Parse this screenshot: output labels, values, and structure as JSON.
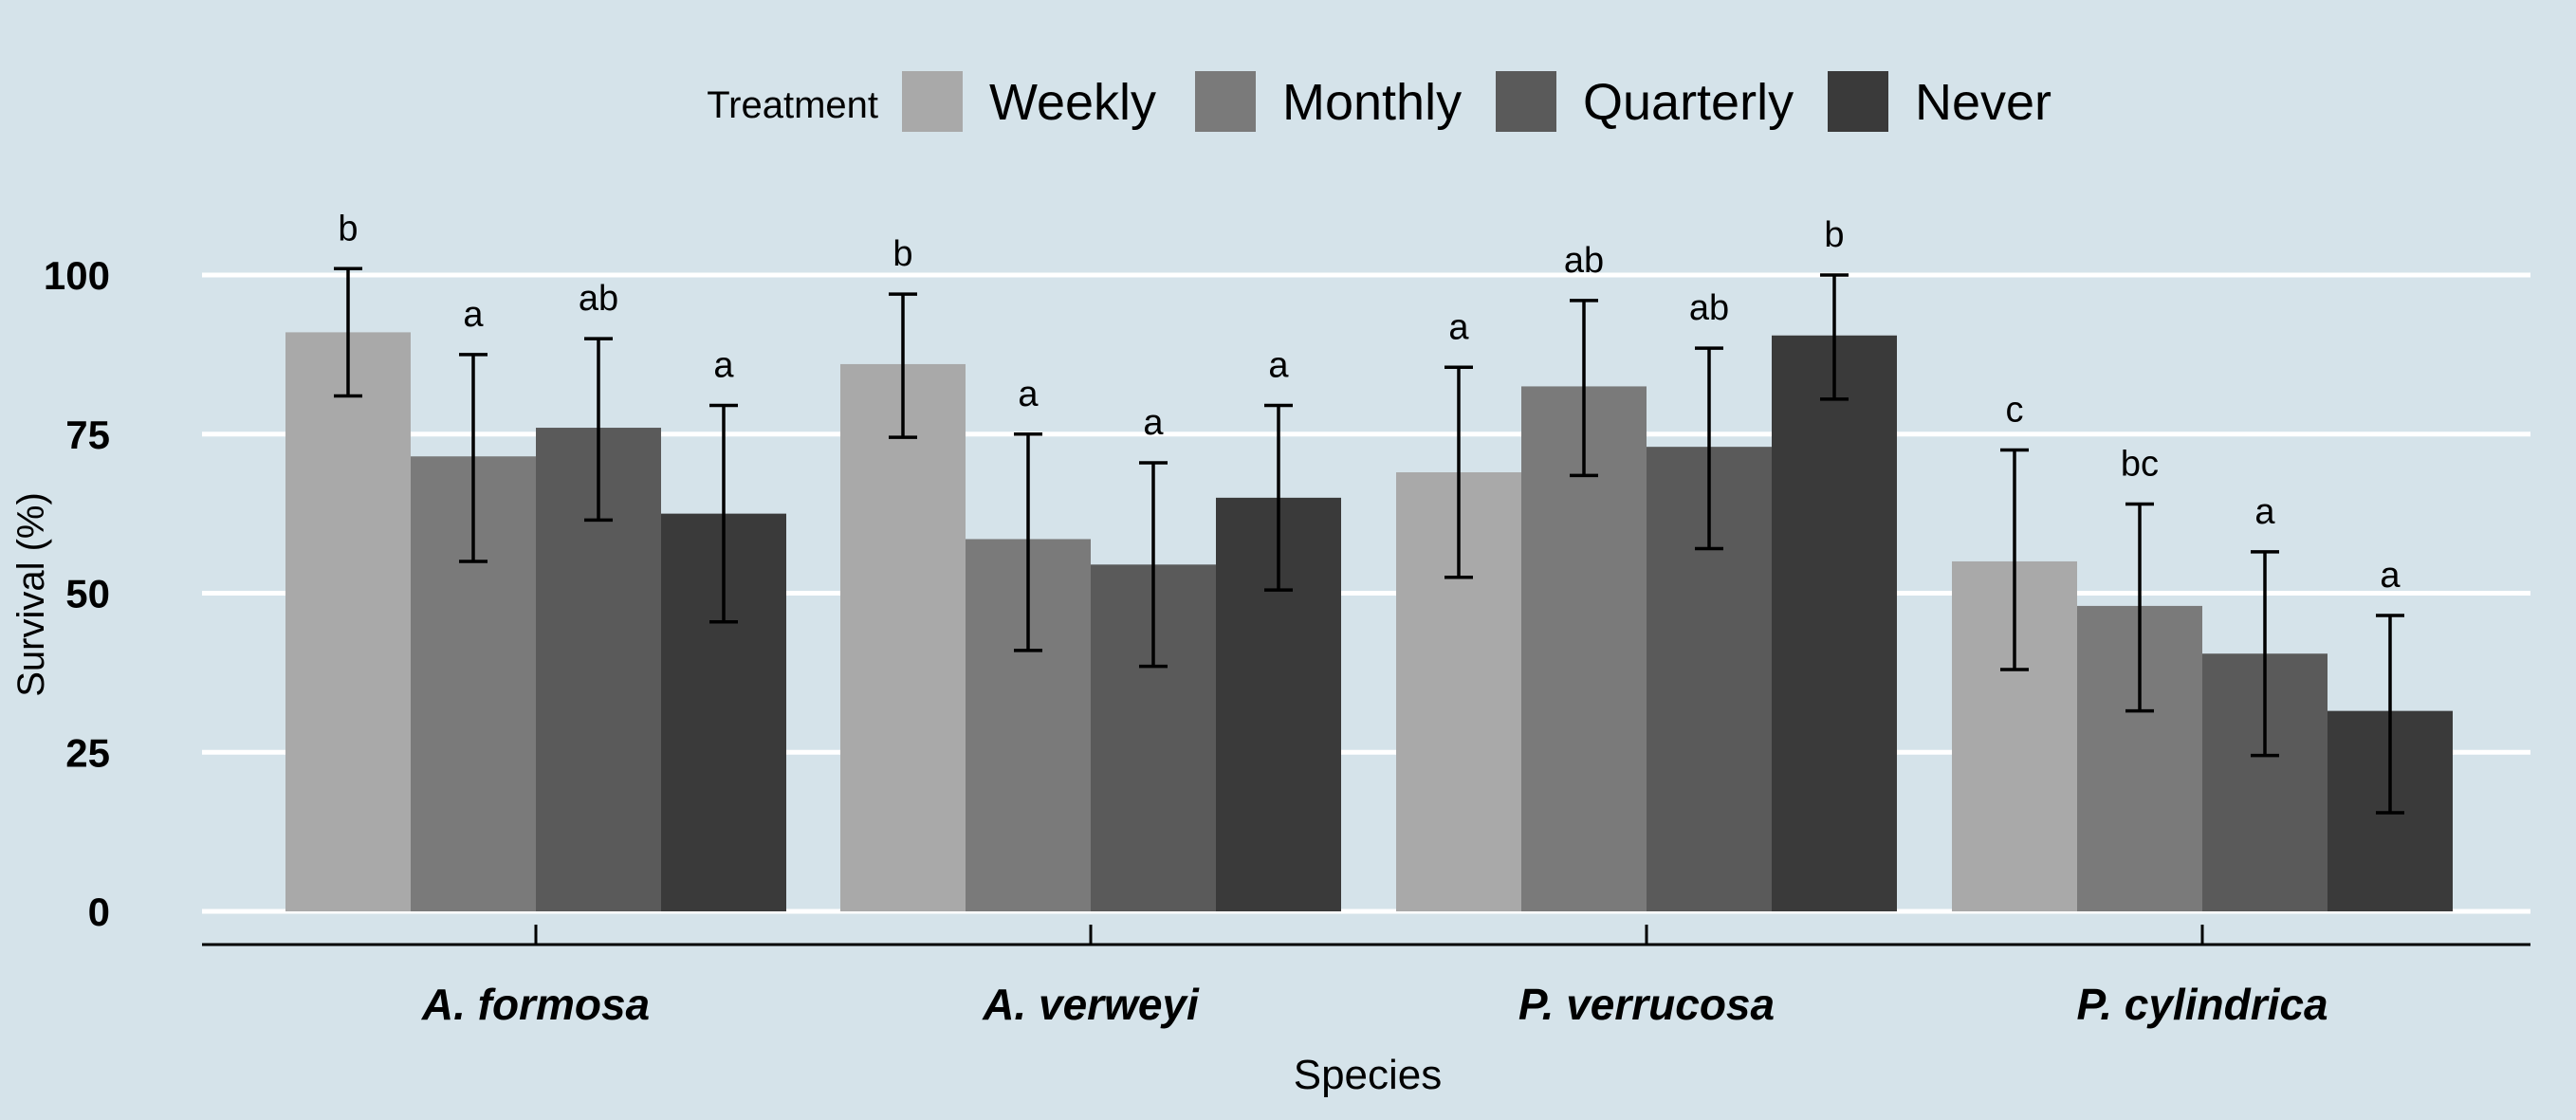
{
  "chart_data": {
    "type": "bar",
    "title": "",
    "xlabel": "Species",
    "ylabel": "Survival (%)",
    "ylim": [
      0,
      110
    ],
    "yticks": [
      0,
      25,
      50,
      75,
      100
    ],
    "grid": "horizontal",
    "legend": {
      "title": "Treatment",
      "placement": "top-center"
    },
    "categories": [
      "A. formosa",
      "A. verweyi",
      "P. verrucosa",
      "P. cylindrica"
    ],
    "series": [
      {
        "name": "Weekly",
        "color": "#a9a9a9",
        "values": [
          91,
          86,
          69,
          55
        ],
        "error_low": [
          81,
          74.5,
          52.5,
          38
        ],
        "error_high": [
          101,
          97,
          85.5,
          72.5
        ],
        "letters": [
          "b",
          "b",
          "a",
          "c"
        ]
      },
      {
        "name": "Monthly",
        "color": "#7a7a7a",
        "values": [
          71.5,
          58.5,
          82.5,
          48
        ],
        "error_low": [
          55,
          41,
          68.5,
          31.5
        ],
        "error_high": [
          87.5,
          75,
          96,
          64
        ],
        "letters": [
          "a",
          "a",
          "ab",
          "bc"
        ]
      },
      {
        "name": "Quarterly",
        "color": "#5a5a5a",
        "values": [
          76,
          54.5,
          73,
          40.5
        ],
        "error_low": [
          61.5,
          38.5,
          57,
          24.5
        ],
        "error_high": [
          90,
          70.5,
          88.5,
          56.5
        ],
        "letters": [
          "ab",
          "a",
          "ab",
          "a"
        ]
      },
      {
        "name": "Never",
        "color": "#3a3a3a",
        "values": [
          62.5,
          65,
          90.5,
          31.5
        ],
        "error_low": [
          45.5,
          50.5,
          80.5,
          15.5
        ],
        "error_high": [
          79.5,
          79.5,
          100,
          46.5
        ],
        "letters": [
          "a",
          "a",
          "b",
          "a"
        ]
      }
    ]
  }
}
